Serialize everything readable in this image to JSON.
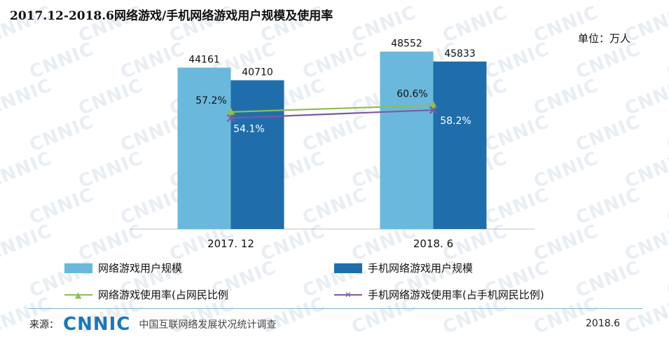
{
  "title": "2017.12-2018.6网络游戏/手机网络游戏用户规模及使用率",
  "unit": "单位：万人",
  "watermark_text": "CNNIC",
  "chart_data": {
    "type": "bar",
    "categories": [
      "2017. 12",
      "2018. 6"
    ],
    "series": [
      {
        "name": "网络游戏用户规模",
        "type": "bar",
        "values": [
          44161,
          48552
        ],
        "color": "#6ab8dc"
      },
      {
        "name": "手机网络游戏用户规模",
        "type": "bar",
        "values": [
          40710,
          45833
        ],
        "color": "#1f6eab"
      },
      {
        "name": "网络游戏使用率(占网民比例",
        "type": "line",
        "values": [
          57.2,
          60.6
        ],
        "labels": [
          "57.2%",
          "60.6%"
        ],
        "color": "#8dbf4e",
        "marker": "triangle"
      },
      {
        "name": "手机网络游戏使用率(占手机网民比例)",
        "type": "line",
        "values": [
          54.1,
          58.2
        ],
        "labels": [
          "54.1%",
          "58.2%"
        ],
        "color": "#7b5aa6",
        "marker": "x"
      }
    ],
    "ylim": [
      0,
      55000
    ],
    "y2lim": [
      0,
      100
    ],
    "legend": "bottom"
  },
  "footer": {
    "source_label": "来源：",
    "logo_text": "CNNIC",
    "organization": "中国互联网络发展状况统计调查",
    "date": "2018.6"
  }
}
